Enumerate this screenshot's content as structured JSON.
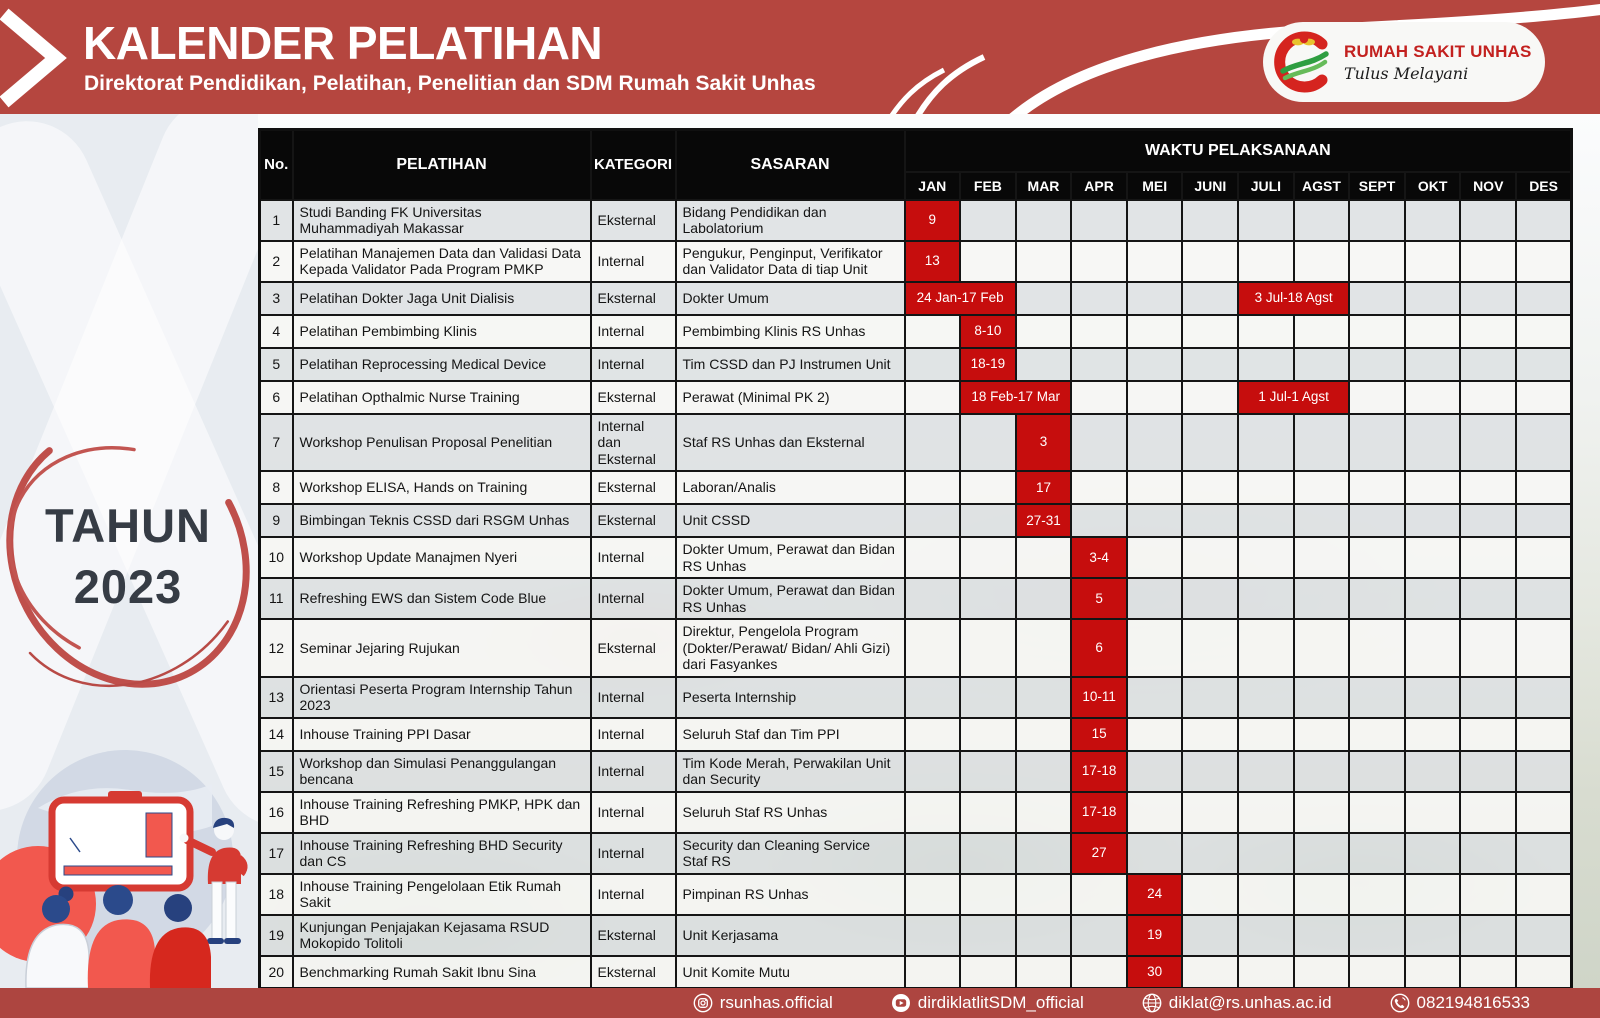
{
  "colors": {
    "banner_red": "#b5463f",
    "footer_red": "#ad4540",
    "event_red": "#c60d0d",
    "header_black": "#080808",
    "panel_bg": "#e8ecf1",
    "year_text": "#363c45",
    "ring_red": "#bf4f4b"
  },
  "banner": {
    "title": "KALENDER PELATIHAN",
    "subtitle": "Direktorat Pendidikan, Pelatihan, Penelitian dan SDM Rumah Sakit Unhas"
  },
  "logo": {
    "name": "RUMAH SAKIT UNHAS",
    "tagline": "Tulus Melayani"
  },
  "side_panel": {
    "year_label": "TAHUN",
    "year": "2023"
  },
  "table": {
    "headers": {
      "no": "No.",
      "pelatihan": "PELATIHAN",
      "kategori": "KATEGORI",
      "sasaran": "SASARAN",
      "waktu": "WAKTU PELAKSANAAN"
    },
    "months": [
      "JAN",
      "FEB",
      "MAR",
      "APR",
      "MEI",
      "JUNI",
      "JULI",
      "AGST",
      "SEPT",
      "OKT",
      "NOV",
      "DES"
    ],
    "rows": [
      {
        "no": "1",
        "pelatihan": "Studi Banding FK Universitas Muhammadiyah Makassar",
        "kategori": "Eksternal",
        "sasaran": "Bidang Pendidikan dan Labolatorium",
        "events": [
          {
            "month": 0,
            "span": 1,
            "label": "9"
          }
        ]
      },
      {
        "no": "2",
        "pelatihan": "Pelatihan Manajemen Data dan Validasi Data Kepada Validator Pada Program PMKP",
        "kategori": "Internal",
        "sasaran": "Pengukur, Penginput, Verifikator dan Validator Data di tiap Unit",
        "events": [
          {
            "month": 0,
            "span": 1,
            "label": "13"
          }
        ]
      },
      {
        "no": "3",
        "pelatihan": "Pelatihan Dokter Jaga Unit Dialisis",
        "kategori": "Eksternal",
        "sasaran": "Dokter Umum",
        "events": [
          {
            "month": 0,
            "span": 2,
            "label": "24 Jan-17 Feb"
          },
          {
            "month": 6,
            "span": 2,
            "label": "3 Jul-18 Agst"
          }
        ]
      },
      {
        "no": "4",
        "pelatihan": "Pelatihan Pembimbing Klinis",
        "kategori": "Internal",
        "sasaran": "Pembimbing Klinis RS Unhas",
        "events": [
          {
            "month": 1,
            "span": 1,
            "label": "8-10"
          }
        ]
      },
      {
        "no": "5",
        "pelatihan": "Pelatihan Reprocessing Medical Device",
        "kategori": "Internal",
        "sasaran": "Tim CSSD dan PJ Instrumen Unit",
        "events": [
          {
            "month": 1,
            "span": 1,
            "label": "18-19"
          }
        ]
      },
      {
        "no": "6",
        "pelatihan": "Pelatihan Opthalmic Nurse Training",
        "kategori": "Eksternal",
        "sasaran": "Perawat (Minimal PK 2)",
        "events": [
          {
            "month": 1,
            "span": 2,
            "label": "18 Feb-17 Mar"
          },
          {
            "month": 6,
            "span": 2,
            "label": "1 Jul-1 Agst"
          }
        ]
      },
      {
        "no": "7",
        "pelatihan": "Workshop Penulisan Proposal Penelitian",
        "kategori": "Internal dan Eksternal",
        "sasaran": "Staf RS Unhas dan Eksternal",
        "events": [
          {
            "month": 2,
            "span": 1,
            "label": "3"
          }
        ]
      },
      {
        "no": "8",
        "pelatihan": "Workshop ELISA, Hands on Training",
        "kategori": "Eksternal",
        "sasaran": "Laboran/Analis",
        "events": [
          {
            "month": 2,
            "span": 1,
            "label": "17"
          }
        ]
      },
      {
        "no": "9",
        "pelatihan": "Bimbingan Teknis CSSD dari RSGM Unhas",
        "kategori": "Eksternal",
        "sasaran": "Unit CSSD",
        "events": [
          {
            "month": 2,
            "span": 1,
            "label": "27-31"
          }
        ]
      },
      {
        "no": "10",
        "pelatihan": "Workshop Update Manajmen Nyeri",
        "kategori": "Internal",
        "sasaran": "Dokter Umum, Perawat dan Bidan RS Unhas",
        "events": [
          {
            "month": 3,
            "span": 1,
            "label": "3-4"
          }
        ]
      },
      {
        "no": "11",
        "pelatihan": "Refreshing EWS dan Sistem Code Blue",
        "kategori": "Internal",
        "sasaran": "Dokter Umum, Perawat dan Bidan RS Unhas",
        "events": [
          {
            "month": 3,
            "span": 1,
            "label": "5"
          }
        ]
      },
      {
        "no": "12",
        "pelatihan": "Seminar Jejaring Rujukan",
        "kategori": "Eksternal",
        "sasaran": "Direktur, Pengelola Program (Dokter/Perawat/ Bidan/ Ahli Gizi) dari Fasyankes",
        "events": [
          {
            "month": 3,
            "span": 1,
            "label": "6"
          }
        ]
      },
      {
        "no": "13",
        "pelatihan": "Orientasi Peserta Program Internship Tahun 2023",
        "kategori": "Internal",
        "sasaran": "Peserta Internship",
        "events": [
          {
            "month": 3,
            "span": 1,
            "label": "10-11"
          }
        ]
      },
      {
        "no": "14",
        "pelatihan": "Inhouse Training PPI Dasar",
        "kategori": "Internal",
        "sasaran": "Seluruh Staf dan Tim PPI",
        "events": [
          {
            "month": 3,
            "span": 1,
            "label": "15"
          }
        ]
      },
      {
        "no": "15",
        "pelatihan": "Workshop dan Simulasi Penanggulangan bencana",
        "kategori": "Internal",
        "sasaran": "Tim Kode Merah, Perwakilan Unit dan Security",
        "events": [
          {
            "month": 3,
            "span": 1,
            "label": "17-18"
          }
        ]
      },
      {
        "no": "16",
        "pelatihan": "Inhouse Training Refreshing PMKP, HPK dan BHD",
        "kategori": "Internal",
        "sasaran": "Seluruh Staf RS Unhas",
        "events": [
          {
            "month": 3,
            "span": 1,
            "label": "17-18"
          }
        ]
      },
      {
        "no": "17",
        "pelatihan": "Inhouse Training Refreshing BHD Security dan CS",
        "kategori": "Internal",
        "sasaran": "Security dan Cleaning Service Staf RS",
        "events": [
          {
            "month": 3,
            "span": 1,
            "label": "27"
          }
        ]
      },
      {
        "no": "18",
        "pelatihan": "Inhouse Training Pengelolaan Etik Rumah Sakit",
        "kategori": "Internal",
        "sasaran": "Pimpinan RS Unhas",
        "events": [
          {
            "month": 4,
            "span": 1,
            "label": "24"
          }
        ]
      },
      {
        "no": "19",
        "pelatihan": "Kunjungan Penjajakan Kejasama RSUD Mokopido Tolitoli",
        "kategori": "Eksternal",
        "sasaran": "Unit Kerjasama",
        "events": [
          {
            "month": 4,
            "span": 1,
            "label": "19"
          }
        ]
      },
      {
        "no": "20",
        "pelatihan": "Benchmarking Rumah Sakit Ibnu Sina",
        "kategori": "Eksternal",
        "sasaran": "Unit Komite Mutu",
        "events": [
          {
            "month": 4,
            "span": 1,
            "label": "30"
          }
        ]
      }
    ]
  },
  "footer": {
    "items": [
      {
        "icon": "instagram",
        "text": "rsunhas.official"
      },
      {
        "icon": "youtube",
        "text": "dirdiklatlitSDM_official"
      },
      {
        "icon": "globe",
        "text": "diklat@rs.unhas.ac.id"
      },
      {
        "icon": "phone",
        "text": "082194816533"
      }
    ]
  }
}
